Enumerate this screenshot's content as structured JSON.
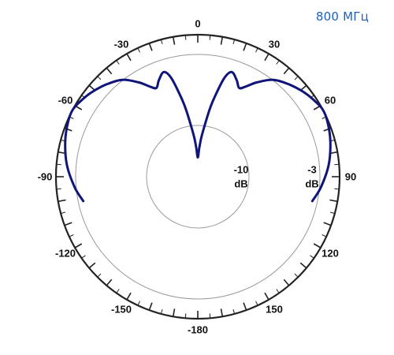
{
  "frequency_label": "800 МГц",
  "chart_data": {
    "type": "polar-line",
    "title": "800 МГц",
    "angle_labels": [
      "0",
      "30",
      "60",
      "90",
      "120",
      "150",
      "-180",
      "-150",
      "-120",
      "-90",
      "-60",
      "-30"
    ],
    "angle_label_values": [
      0,
      30,
      60,
      90,
      120,
      150,
      180,
      -150,
      -120,
      -90,
      -60,
      -30
    ],
    "radial_unit": "dB",
    "rings": [
      {
        "value": -10,
        "label": "-10",
        "unit": "dB"
      },
      {
        "value": -3,
        "label": "-3",
        "unit": "dB"
      },
      {
        "value": 0,
        "label": "",
        "unit": ""
      }
    ],
    "series": [
      {
        "color": "#10157a",
        "angle": [
          -102,
          -95,
          -85,
          -75,
          -67,
          -62,
          -58,
          -52,
          -45,
          -38,
          -32,
          -28,
          -25,
          -22,
          -18,
          -15,
          -12,
          -10,
          -7,
          -5,
          -3,
          0,
          3,
          5,
          7,
          10,
          12,
          15,
          18,
          22,
          25,
          28,
          32,
          38,
          45,
          52,
          58,
          62,
          67,
          75,
          85,
          95,
          102
        ],
        "gain_db": [
          -3.5,
          -2.8,
          -1.6,
          -0.7,
          -0.15,
          0,
          -0.3,
          -0.9,
          -1.8,
          -2.9,
          -4.1,
          -5.0,
          -5.4,
          -4.8,
          -4.2,
          -5.0,
          -7.0,
          -8.3,
          -10.5,
          -12.0,
          -13.5,
          -15.0,
          -13.5,
          -12.0,
          -10.5,
          -8.3,
          -7.0,
          -5.0,
          -4.2,
          -4.8,
          -5.4,
          -5.0,
          -4.1,
          -2.9,
          -1.8,
          -0.9,
          -0.3,
          0,
          -0.15,
          -0.7,
          -1.6,
          -2.8,
          -3.5
        ]
      }
    ],
    "grid": true
  }
}
